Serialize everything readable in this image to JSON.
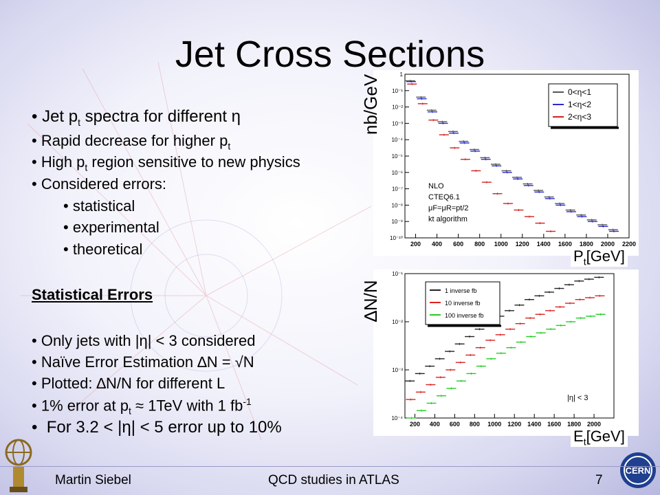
{
  "slide": {
    "title": "Jet Cross Sections",
    "bullets1": [
      {
        "pre": "Jet p",
        "sub": "t",
        "post": " spectra for different η",
        "big": true
      },
      {
        "pre": "Rapid decrease for higher p",
        "sub": "t",
        "post": ""
      },
      {
        "pre": "High p",
        "sub": "t",
        "post": " region sensitive to new physics"
      },
      {
        "pre": "Considered errors:",
        "sub": "",
        "post": ""
      }
    ],
    "sub_bullets": [
      "statistical",
      "experimental",
      "theoretical"
    ],
    "stat_heading": "Statistical Errors",
    "bullets2": [
      {
        "text": "Only jets with |η| < 3 considered"
      },
      {
        "text": "Naïve Error Estimation ∆N = √N"
      },
      {
        "text": "Plotted: ∆N/N for different L"
      },
      {
        "text": "1% error at p",
        "sub": "t",
        "mid": " ≈ 1TeV with 1 fb",
        "sup": "-1"
      },
      {
        "text": "For 3.2 < |η| < 5 error up to 10%",
        "big": true
      }
    ],
    "footer": {
      "author": "Martin Siebel",
      "center": "QCD studies in ATLAS",
      "page": "7"
    }
  },
  "chart_data": [
    {
      "type": "scatter",
      "ylabel": "nb/GeV",
      "xlabel": "P_t[GeV]",
      "xlim": [
        100,
        2200
      ],
      "ylim_log": [
        -10,
        0
      ],
      "x_ticks": [
        200,
        400,
        600,
        800,
        1000,
        1200,
        1400,
        1600,
        1800,
        2000,
        2200
      ],
      "y_ticks": [
        "10⁻¹⁰",
        "10⁻⁹",
        "10⁻⁸",
        "10⁻⁷",
        "10⁻⁶",
        "10⁻⁵",
        "10⁻⁴",
        "10⁻³",
        "10⁻²",
        "10⁻¹",
        "1"
      ],
      "legend": {
        "placement": "top-right",
        "entries": [
          "0<η<1",
          "1<η<2",
          "2<η<3"
        ]
      },
      "annotation": [
        "NLO",
        "CTEQ6.1",
        "μF=μR=pt/2",
        "kt algorithm"
      ],
      "series": [
        {
          "name": "0<η<1",
          "color": "#555555",
          "log_y": [
            -0.4,
            -1.4,
            -2.2,
            -2.9,
            -3.5,
            -4.1,
            -4.6,
            -5.1,
            -5.5,
            -5.9,
            -6.3,
            -6.7,
            -7.1,
            -7.5,
            -7.9,
            -8.3,
            -8.6,
            -8.9,
            -9.2,
            -9.5
          ]
        },
        {
          "name": "1<η<2",
          "color": "#2a2acc",
          "log_y": [
            -0.45,
            -1.5,
            -2.3,
            -3.0,
            -3.6,
            -4.2,
            -4.7,
            -5.2,
            -5.6,
            -6.0,
            -6.4,
            -6.8,
            -7.2,
            -7.6,
            -8.0,
            -8.4,
            -8.7,
            -9.0,
            -9.3,
            -9.6
          ]
        },
        {
          "name": "2<η<3",
          "color": "#d42020",
          "log_y": [
            -0.6,
            -1.8,
            -2.8,
            -3.7,
            -4.5,
            -5.2,
            -5.9,
            -6.6,
            -7.3,
            -7.9,
            -8.3,
            -8.7,
            -9.1,
            -9.6
          ]
        }
      ]
    },
    {
      "type": "scatter",
      "ylabel": "∆N/N",
      "xlabel": "E_t[GeV]",
      "xlim": [
        100,
        2200
      ],
      "ylim_log": [
        -4.5,
        -0.6
      ],
      "x_ticks": [
        200,
        400,
        600,
        800,
        1000,
        1200,
        1400,
        1600,
        1800,
        2000
      ],
      "y_ticks": [
        "10⁻⁴",
        "10⁻³",
        "10⁻²",
        "10⁻¹"
      ],
      "legend": {
        "placement": "top-left",
        "entries": [
          "1 inverse fb",
          "10 inverse fb",
          "100 inverse fb"
        ]
      },
      "annotation": [
        "|η| < 3"
      ],
      "series": [
        {
          "name": "1 inverse fb",
          "color": "#222222",
          "log_y": [
            -3.5,
            -3.3,
            -3.1,
            -2.9,
            -2.7,
            -2.5,
            -2.3,
            -2.1,
            -1.9,
            -1.75,
            -1.6,
            -1.45,
            -1.3,
            -1.2,
            -1.1,
            -1.0,
            -0.9,
            -0.8,
            -0.75,
            -0.7
          ]
        },
        {
          "name": "10 inverse fb",
          "color": "#dd2020",
          "log_y": [
            -4.0,
            -3.8,
            -3.6,
            -3.4,
            -3.2,
            -3.0,
            -2.8,
            -2.6,
            -2.4,
            -2.25,
            -2.1,
            -1.95,
            -1.8,
            -1.7,
            -1.6,
            -1.5,
            -1.4,
            -1.3,
            -1.25,
            -1.2
          ]
        },
        {
          "name": "100 inverse fb",
          "color": "#22cc22",
          "log_y": [
            -4.5,
            -4.3,
            -4.1,
            -3.9,
            -3.7,
            -3.5,
            -3.3,
            -3.1,
            -2.9,
            -2.75,
            -2.6,
            -2.45,
            -2.3,
            -2.2,
            -2.1,
            -2.0,
            -1.9,
            -1.8,
            -1.75,
            -1.7
          ]
        }
      ]
    }
  ]
}
